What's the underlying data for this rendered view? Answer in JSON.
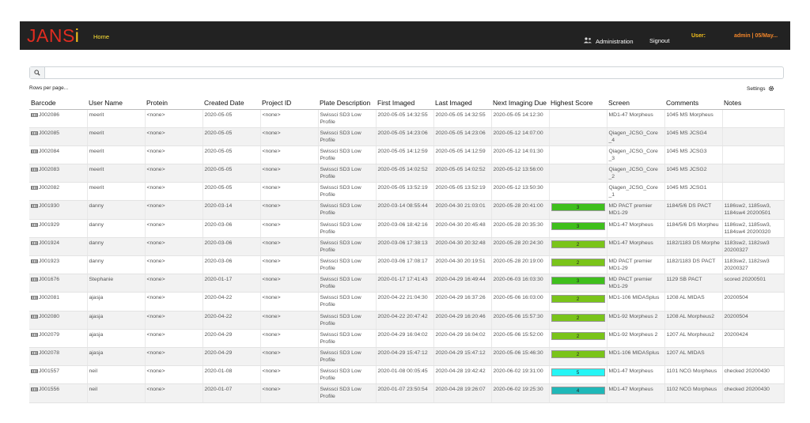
{
  "header": {
    "logo_main": "JANS",
    "logo_i": "i",
    "home": "Home",
    "administration": "Administration",
    "signout": "Signout",
    "user_label": "User:",
    "user_value": "admin | 05/May..."
  },
  "search": {
    "placeholder": ""
  },
  "rows_per_page": "Rows per page...",
  "settings_label": "Settings",
  "columns": [
    "Barcode",
    "User Name",
    "Protein",
    "Created Date",
    "Project ID",
    "Plate Description",
    "First Imaged",
    "Last Imaged",
    "Next Imaging Due",
    "Highest Score",
    "Screen",
    "Comments",
    "Notes"
  ],
  "rows": [
    {
      "barcode": "J002086",
      "user": "meerit",
      "protein": "<none>",
      "created": "2020-05-05",
      "project": "<none>",
      "plate": "Swissci SD3 Low Profile",
      "first": "2020-05-05 14:32:55",
      "last": "2020-05-05 14:32:55",
      "next": "2020-05-05 14:12:30",
      "score": "",
      "score_color": "",
      "screen": "MD1-47 Morpheus",
      "comments": "1045 MS Morpheus",
      "notes": ""
    },
    {
      "barcode": "J002085",
      "user": "meerit",
      "protein": "<none>",
      "created": "2020-05-05",
      "project": "<none>",
      "plate": "Swissci SD3 Low Profile",
      "first": "2020-05-05 14:23:06",
      "last": "2020-05-05 14:23:06",
      "next": "2020-05-12 14:07:00",
      "score": "",
      "score_color": "",
      "screen": "Qiagen_JCSG_Core _4",
      "comments": "1045 MS JCSG4",
      "notes": ""
    },
    {
      "barcode": "J002084",
      "user": "meerit",
      "protein": "<none>",
      "created": "2020-05-05",
      "project": "<none>",
      "plate": "Swissci SD3 Low Profile",
      "first": "2020-05-05 14:12:59",
      "last": "2020-05-05 14:12:59",
      "next": "2020-05-12 14:01:30",
      "score": "",
      "score_color": "",
      "screen": "Qiagen_JCSG_Core _3",
      "comments": "1045 MS JCSG3",
      "notes": ""
    },
    {
      "barcode": "J002083",
      "user": "meerit",
      "protein": "<none>",
      "created": "2020-05-05",
      "project": "<none>",
      "plate": "Swissci SD3 Low Profile",
      "first": "2020-05-05 14:02:52",
      "last": "2020-05-05 14:02:52",
      "next": "2020-05-12 13:56:00",
      "score": "",
      "score_color": "",
      "screen": "Qiagen_JCSG_Core _2",
      "comments": "1045 MS JCSG2",
      "notes": ""
    },
    {
      "barcode": "J002082",
      "user": "meerit",
      "protein": "<none>",
      "created": "2020-05-05",
      "project": "<none>",
      "plate": "Swissci SD3 Low Profile",
      "first": "2020-05-05 13:52:19",
      "last": "2020-05-05 13:52:19",
      "next": "2020-05-12 13:50:30",
      "score": "",
      "score_color": "",
      "screen": "Qiagen_JCSG_Core _1",
      "comments": "1045 MS JCSG1",
      "notes": ""
    },
    {
      "barcode": "J001930",
      "user": "danny",
      "protein": "<none>",
      "created": "2020-03-14",
      "project": "<none>",
      "plate": "Swissci SD3 Low Profile",
      "first": "2020-03-14 08:55:44",
      "last": "2020-04-30 21:03:01",
      "next": "2020-05-28 20:41:00",
      "score": "3",
      "score_color": "#3fbf1c",
      "screen": "MD PACT premier MD1-29",
      "comments": "1184/5/6 DS PACT",
      "notes": "1186sw2, 1185sw3, 1184sw4 20200501"
    },
    {
      "barcode": "J001929",
      "user": "danny",
      "protein": "<none>",
      "created": "2020-03-06",
      "project": "<none>",
      "plate": "Swissci SD3 Low Profile",
      "first": "2020-03-06 18:42:16",
      "last": "2020-04-30 20:45:48",
      "next": "2020-05-28 20:35:30",
      "score": "3",
      "score_color": "#3fbf1c",
      "screen": "MD1-47 Morpheus",
      "comments": "1184/5/6 DS Morpheu",
      "notes": "1186sw2, 1185sw3, 1184sw4 20200320"
    },
    {
      "barcode": "J001924",
      "user": "danny",
      "protein": "<none>",
      "created": "2020-03-06",
      "project": "<none>",
      "plate": "Swissci SD3 Low Profile",
      "first": "2020-03-06 17:38:13",
      "last": "2020-04-30 20:32:48",
      "next": "2020-05-28 20:24:30",
      "score": "2",
      "score_color": "#7ac41a",
      "screen": "MD1-47 Morpheus",
      "comments": "1182/1183 DS Morphe",
      "notes": "1183sw2, 1182sw3 20200327"
    },
    {
      "barcode": "J001923",
      "user": "danny",
      "protein": "<none>",
      "created": "2020-03-06",
      "project": "<none>",
      "plate": "Swissci SD3 Low Profile",
      "first": "2020-03-06 17:08:17",
      "last": "2020-04-30 20:19:51",
      "next": "2020-05-28 20:19:00",
      "score": "2",
      "score_color": "#7ac41a",
      "screen": "MD PACT premier MD1-29",
      "comments": "1182/1183 DS PACT",
      "notes": "1183sw2, 1182sw3 20200327"
    },
    {
      "barcode": "J001676",
      "user": "Stephanie",
      "protein": "<none>",
      "created": "2020-01-17",
      "project": "<none>",
      "plate": "Swissci SD3 Low Profile",
      "first": "2020-01-17 17:41:43",
      "last": "2020-04-29 16:49:44",
      "next": "2020-06-03 16:03:30",
      "score": "3",
      "score_color": "#3fbf1c",
      "screen": "MD PACT premier MD1-29",
      "comments": "1129 SB PACT",
      "notes": "scored 20200501"
    },
    {
      "barcode": "J002081",
      "user": "ajasja",
      "protein": "<none>",
      "created": "2020-04-22",
      "project": "<none>",
      "plate": "Swissci SD3 Low Profile",
      "first": "2020-04-22 21:04:30",
      "last": "2020-04-29 16:37:26",
      "next": "2020-05-06 16:03:00",
      "score": "2",
      "score_color": "#7ac41a",
      "screen": "MD1-106 MIDASplus",
      "comments": "1208 AL MIDAS",
      "notes": "20200504"
    },
    {
      "barcode": "J002080",
      "user": "ajasja",
      "protein": "<none>",
      "created": "2020-04-22",
      "project": "<none>",
      "plate": "Swissci SD3 Low Profile",
      "first": "2020-04-22 20:47:42",
      "last": "2020-04-29 16:20:46",
      "next": "2020-05-06 15:57:30",
      "score": "2",
      "score_color": "#7ac41a",
      "screen": "MD1-92 Morpheus 2",
      "comments": "1208 AL Morpheus2",
      "notes": "20200504"
    },
    {
      "barcode": "J002079",
      "user": "ajasja",
      "protein": "<none>",
      "created": "2020-04-29",
      "project": "<none>",
      "plate": "Swissci SD3 Low Profile",
      "first": "2020-04-29 16:04:02",
      "last": "2020-04-29 16:04:02",
      "next": "2020-05-06 15:52:00",
      "score": "2",
      "score_color": "#7ac41a",
      "screen": "MD1-92 Morpheus 2",
      "comments": "1207 AL Morpheus2",
      "notes": "20200424"
    },
    {
      "barcode": "J002078",
      "user": "ajasja",
      "protein": "<none>",
      "created": "2020-04-29",
      "project": "<none>",
      "plate": "Swissci SD3 Low Profile",
      "first": "2020-04-29 15:47:12",
      "last": "2020-04-29 15:47:12",
      "next": "2020-05-06 15:46:30",
      "score": "2",
      "score_color": "#7ac41a",
      "screen": "MD1-106 MIDASplus",
      "comments": "1207 AL MIDAS",
      "notes": ""
    },
    {
      "barcode": "J001557",
      "user": "neil",
      "protein": "<none>",
      "created": "2020-01-08",
      "project": "<none>",
      "plate": "Swissci SD3 Low Profile",
      "first": "2020-01-08 00:05:45",
      "last": "2020-04-28 19:42:42",
      "next": "2020-06-02 19:31:00",
      "score": "5",
      "score_color": "#25f5f5",
      "screen": "MD1-47 Morpheus",
      "comments": "1101 NCG Morpheus",
      "notes": "checked 20200430"
    },
    {
      "barcode": "J001556",
      "user": "neil",
      "protein": "<none>",
      "created": "2020-01-07",
      "project": "<none>",
      "plate": "Swissci SD3 Low Profile",
      "first": "2020-01-07 23:50:54",
      "last": "2020-04-28 19:26:07",
      "next": "2020-06-02 19:25:30",
      "score": "4",
      "score_color": "#1fb8b8",
      "screen": "MD1-47 Morpheus",
      "comments": "1102 NCG Morpheus",
      "notes": "checked 20200430"
    }
  ]
}
